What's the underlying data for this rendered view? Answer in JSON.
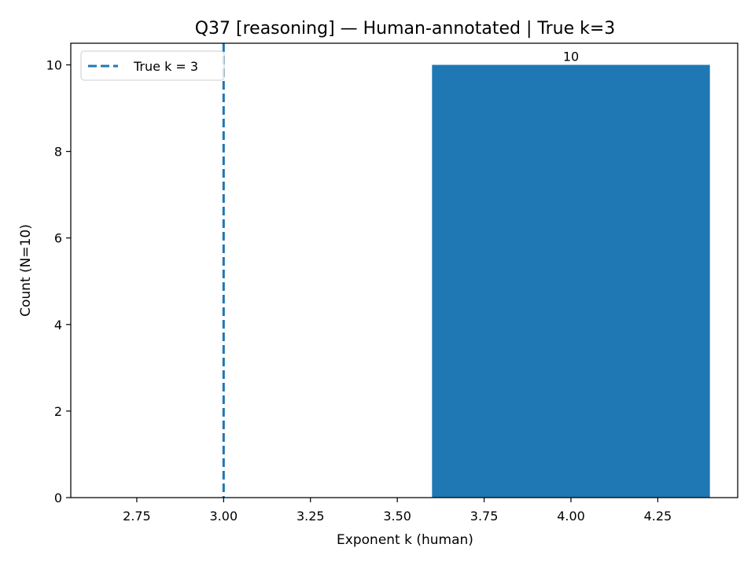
{
  "chart_data": {
    "type": "bar",
    "title": "Q37 [reasoning] — Human-annotated | True k=3",
    "xlabel": "Exponent k (human)",
    "ylabel": "Count (N=10)",
    "xlim": [
      2.56,
      4.48
    ],
    "ylim": [
      0,
      10.5
    ],
    "x_ticks": [
      2.75,
      3.0,
      3.25,
      3.5,
      3.75,
      4.0,
      4.25
    ],
    "x_tick_labels": [
      "2.75",
      "3.00",
      "3.25",
      "3.50",
      "3.75",
      "4.00",
      "4.25"
    ],
    "y_ticks": [
      0,
      2,
      4,
      6,
      8,
      10
    ],
    "y_tick_labels": [
      "0",
      "2",
      "4",
      "6",
      "8",
      "10"
    ],
    "bars": [
      {
        "x": 4,
        "width": 0.8,
        "value": 10,
        "label": "10"
      }
    ],
    "reference_line": {
      "x": 3,
      "style": "dashed",
      "label": "True k = 3"
    },
    "legend": {
      "placement": "top-left",
      "entries": [
        "True k = 3"
      ]
    },
    "grid": false,
    "colors": {
      "bar": "#1f77b4",
      "reference_line": "#1f77b4"
    }
  }
}
